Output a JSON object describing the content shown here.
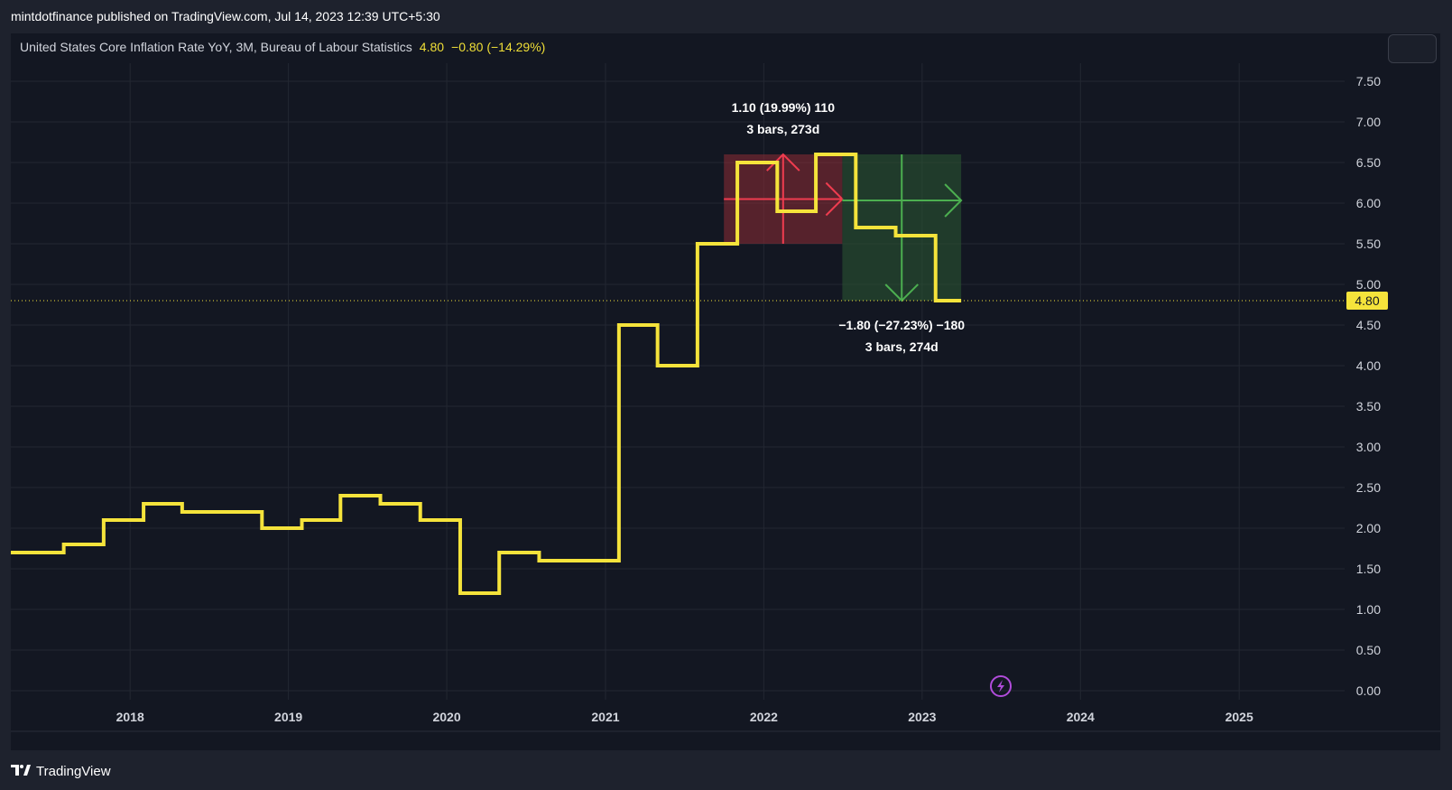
{
  "header": {
    "publisher_line": "mintdotfinance published on TradingView.com, Jul 14, 2023 12:39 UTC+5:30"
  },
  "legend": {
    "symbol": "United States Core Inflation Rate YoY, 3M, Bureau of Labour Statistics",
    "last": "4.80",
    "change": "−0.80 (−14.29%)"
  },
  "price_badge": "4.80",
  "footer": {
    "brand": "TradingView"
  },
  "colors": {
    "line": "#f5e33b",
    "background": "#131722",
    "grid": "#232732",
    "up_box": "#8e2b35",
    "down_box": "#2b5a33",
    "up_arrow": "#ef3c4f",
    "down_arrow": "#4caf50"
  },
  "icons": {
    "flash": "lightning-icon"
  },
  "chart_data": {
    "type": "line",
    "step": true,
    "x_axis": {
      "type": "date",
      "ticks": [
        "2018",
        "2019",
        "2020",
        "2021",
        "2022",
        "2023",
        "2024",
        "2025"
      ],
      "range": [
        "2017-04-01",
        "2025-09-01"
      ]
    },
    "y_axis": {
      "position": "right",
      "ylim": [
        0,
        7.5
      ],
      "ticks": [
        "0.00",
        "0.50",
        "1.00",
        "1.50",
        "2.00",
        "2.50",
        "3.00",
        "3.50",
        "4.00",
        "4.50",
        "5.00",
        "5.50",
        "6.00",
        "6.50",
        "7.00",
        "7.50"
      ]
    },
    "grid": true,
    "series": [
      {
        "points": [
          [
            "2017-04-01",
            1.7
          ],
          [
            "2017-08-01",
            1.8
          ],
          [
            "2017-11-01",
            2.1
          ],
          [
            "2018-02-01",
            2.3
          ],
          [
            "2018-05-01",
            2.2
          ],
          [
            "2018-11-01",
            2.0
          ],
          [
            "2019-02-01",
            2.1
          ],
          [
            "2019-05-01",
            2.4
          ],
          [
            "2019-08-01",
            2.3
          ],
          [
            "2019-11-01",
            2.1
          ],
          [
            "2020-02-01",
            1.2
          ],
          [
            "2020-05-01",
            1.7
          ],
          [
            "2020-08-01",
            1.6
          ],
          [
            "2021-02-01",
            4.5
          ],
          [
            "2021-05-01",
            4.0
          ],
          [
            "2021-08-01",
            5.5
          ],
          [
            "2021-11-01",
            6.5
          ],
          [
            "2022-02-01",
            5.9
          ],
          [
            "2022-05-01",
            6.6
          ],
          [
            "2022-08-01",
            5.7
          ],
          [
            "2022-11-01",
            5.6
          ],
          [
            "2023-02-01",
            4.8
          ],
          [
            "2023-04-01",
            4.8
          ]
        ]
      }
    ],
    "last_value_line": 4.8,
    "measurements": [
      {
        "direction": "up",
        "x_start": "2021-10-01",
        "x_end": "2022-07-01",
        "y_low": 5.5,
        "y_high": 6.6,
        "label_line1": "1.10 (19.99%) 110",
        "label_line2": "3 bars, 273d"
      },
      {
        "direction": "down",
        "x_start": "2022-07-01",
        "x_end": "2023-04-01",
        "y_low": 4.8,
        "y_high": 6.6,
        "label_line1": "−1.80 (−27.23%) −180",
        "label_line2": "3 bars, 274d"
      }
    ]
  }
}
